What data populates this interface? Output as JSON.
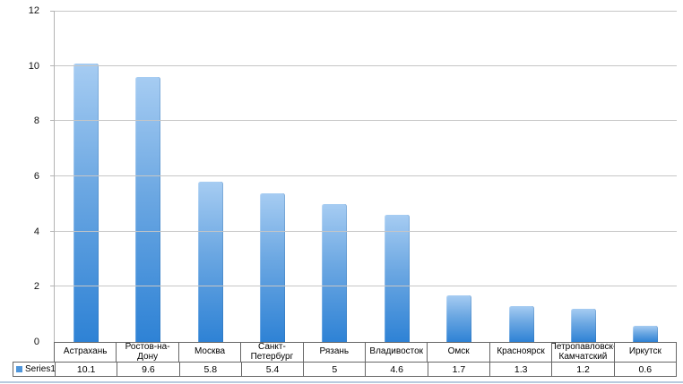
{
  "chart_data": {
    "type": "bar",
    "title": "",
    "xlabel": "",
    "ylabel": "",
    "categories": [
      "Астрахань",
      "Ростов-на-Дону",
      "Москва",
      "Санкт-Петербург",
      "Рязань",
      "Владивосток",
      "Омск",
      "Красноярск",
      "Петропавловск-Камчатский",
      "Иркутск"
    ],
    "series": [
      {
        "name": "Series1",
        "values": [
          10.1,
          9.6,
          5.8,
          5.4,
          5,
          4.6,
          1.7,
          1.3,
          1.2,
          0.6
        ]
      }
    ],
    "ylim": [
      0,
      12
    ],
    "yticks": [
      0,
      2,
      4,
      6,
      8,
      10,
      12
    ],
    "grid": true,
    "legend_position": "bottom-table-left",
    "colors": {
      "bar_gradient_top": "#a6ccf2",
      "bar_gradient_bottom": "#2e82d5",
      "legend_swatch": "#4f96db",
      "gridline": "#c6c6c6",
      "axis_line": "#b3b3b3",
      "table_border": "#666666",
      "bottom_divider": "#b8cbde"
    }
  }
}
